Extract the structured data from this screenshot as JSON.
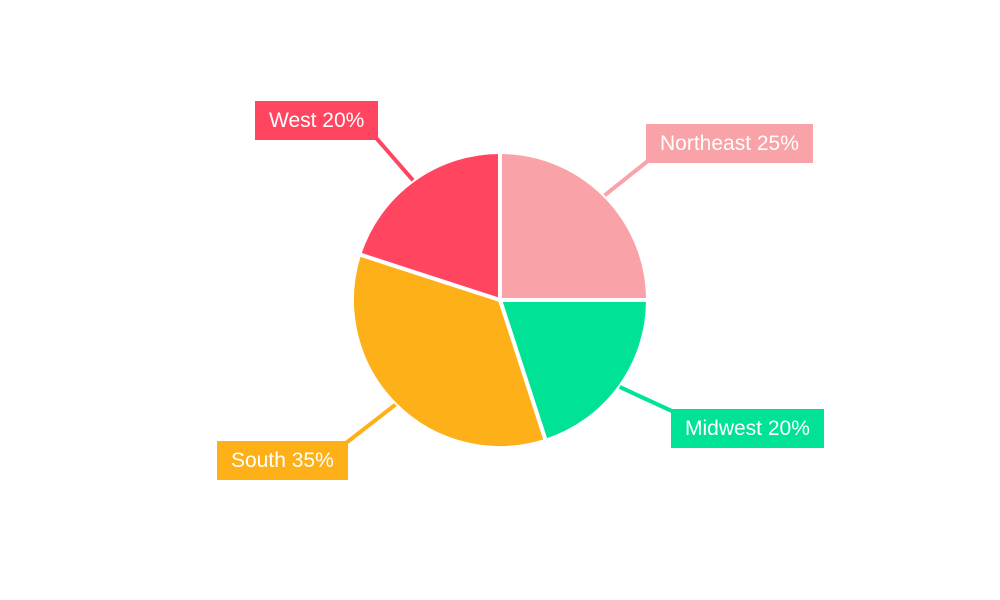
{
  "chart_data": {
    "type": "pie",
    "categories": [
      "Northeast",
      "Midwest",
      "South",
      "West"
    ],
    "values": [
      25,
      20,
      35,
      20
    ],
    "value_unit": "%",
    "series": [
      {
        "name": "Northeast",
        "value": 25,
        "display_label": "Northeast 25%",
        "color": "#F9A3A8"
      },
      {
        "name": "Midwest",
        "value": 20,
        "display_label": "Midwest 20%",
        "color": "#00E396"
      },
      {
        "name": "South",
        "value": 35,
        "display_label": "South 35%",
        "color": "#FEB019"
      },
      {
        "name": "West",
        "value": 20,
        "display_label": "West 20%",
        "color": "#FF4560"
      }
    ],
    "start_angle": "top",
    "direction": "clockwise",
    "slice_border_color": "#FFFFFF",
    "background_color": "#FFFFFF",
    "legend": "none",
    "label_style": "callout boxes with leader lines"
  }
}
